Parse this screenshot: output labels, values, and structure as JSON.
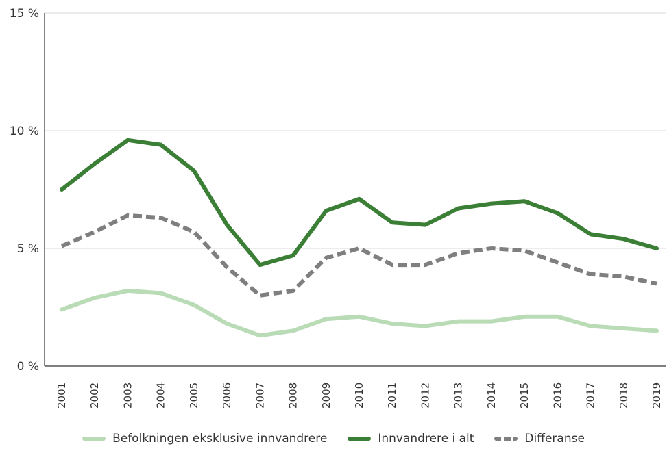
{
  "chart_data": {
    "type": "line",
    "title": "",
    "xlabel": "",
    "ylabel": "",
    "x": [
      "2001",
      "2002",
      "2003",
      "2004",
      "2005",
      "2006",
      "2007",
      "2008",
      "2009",
      "2010",
      "2011",
      "2012",
      "2013",
      "2014",
      "2015",
      "2016",
      "2017",
      "2018",
      "2019"
    ],
    "ylim": [
      0,
      15
    ],
    "yticks": [
      0,
      5,
      10,
      15
    ],
    "ytick_labels": [
      "0 %",
      "5 %",
      "10 %",
      "15 %"
    ],
    "grid": true,
    "legend_placement": "bottom",
    "series": [
      {
        "name": "Befolkningen eksklusive innvandrere",
        "color": "#b9dcb7",
        "style": "solid",
        "values": [
          2.4,
          2.9,
          3.2,
          3.1,
          2.6,
          1.8,
          1.3,
          1.5,
          2.0,
          2.1,
          1.8,
          1.7,
          1.9,
          1.9,
          2.1,
          2.1,
          1.7,
          1.6,
          1.5
        ]
      },
      {
        "name": "Innvandrere i alt",
        "color": "#3a7f35",
        "style": "solid",
        "values": [
          7.5,
          8.6,
          9.6,
          9.4,
          8.3,
          6.0,
          4.3,
          4.7,
          6.6,
          7.1,
          6.1,
          6.0,
          6.7,
          6.9,
          7.0,
          6.5,
          5.6,
          5.4,
          5.0
        ]
      },
      {
        "name": "Differanse",
        "color": "#7f7f7f",
        "style": "dashed",
        "values": [
          5.1,
          5.7,
          6.4,
          6.3,
          5.7,
          4.2,
          3.0,
          3.2,
          4.6,
          5.0,
          4.3,
          4.3,
          4.8,
          5.0,
          4.9,
          4.4,
          3.9,
          3.8,
          3.5
        ]
      }
    ]
  }
}
